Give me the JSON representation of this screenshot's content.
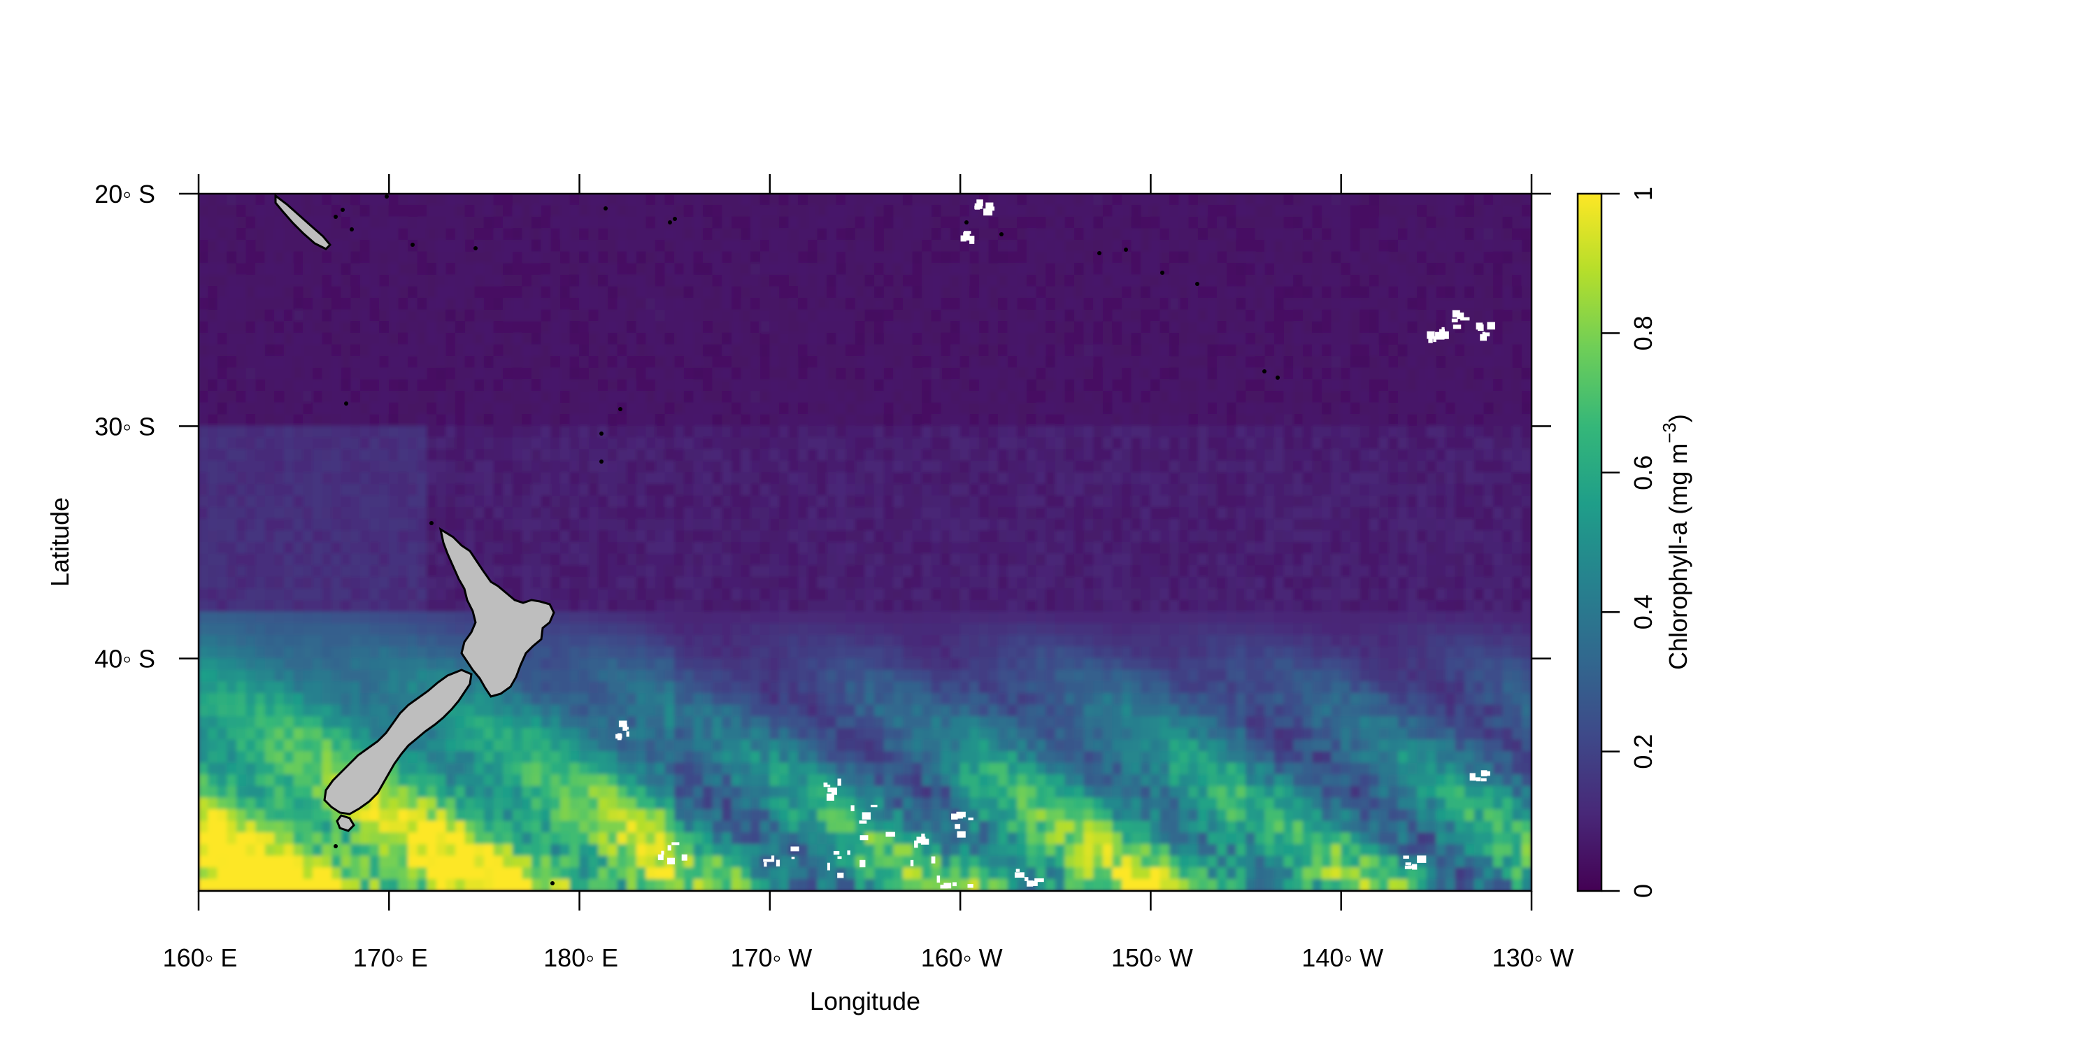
{
  "chart_data": {
    "type": "heatmap",
    "title": "",
    "xlabel": "Longitude",
    "ylabel": "Latitude",
    "x_ticks": [
      "160◦  E",
      "170◦  E",
      "180◦  E",
      "170◦  W",
      "160◦  W",
      "150◦  W",
      "140◦  W",
      "130◦  W"
    ],
    "x_tick_values": [
      160,
      170,
      180,
      190,
      200,
      210,
      220,
      230
    ],
    "y_ticks": [
      "20◦  S",
      "30◦  S",
      "40◦  S"
    ],
    "y_tick_values": [
      -20,
      -30,
      -40
    ],
    "xlim": [
      160,
      230
    ],
    "ylim": [
      -50,
      -20
    ],
    "colorbar": {
      "label_main": "Chlorophyll-a (mg m",
      "label_sup": "−3",
      "label_end": ")",
      "ticks": [
        "0",
        "0.2",
        "0.4",
        "0.6",
        "0.8",
        "1"
      ],
      "tick_values": [
        0,
        0.2,
        0.4,
        0.6,
        0.8,
        1
      ],
      "range": [
        0,
        1
      ],
      "colormap": [
        "#440154",
        "#482878",
        "#3e4989",
        "#31688e",
        "#26828e",
        "#1f9e89",
        "#35b779",
        "#6ece58",
        "#b5de2b",
        "#fde725"
      ]
    },
    "land_color": "#bebebe",
    "missing_color": "#ffffff",
    "field_description_levels": {
      "open_ocean_north": 0.05,
      "mid_latitude": 0.15,
      "southern_band": 0.6,
      "near_new_zealand_south": 0.95
    }
  }
}
